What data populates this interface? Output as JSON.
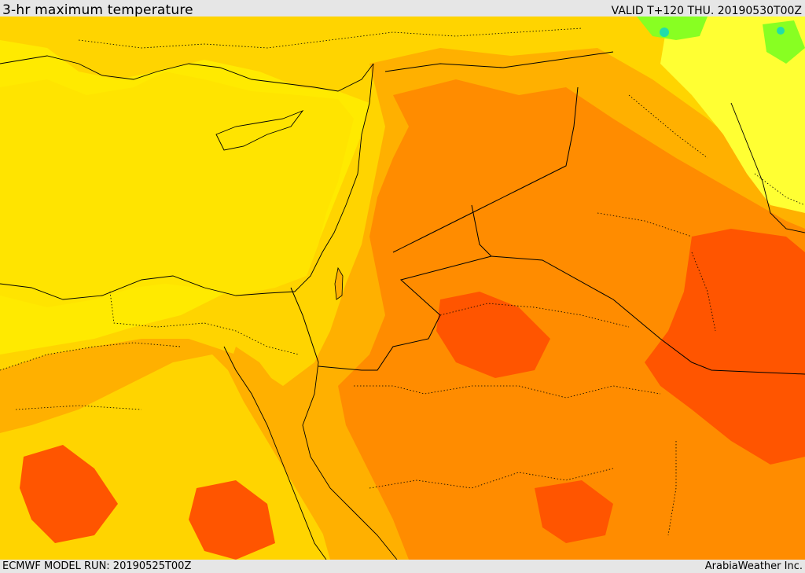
{
  "header": {
    "title": "3-hr maximum temperature",
    "valid": "VALID T+120 THU. 20190530T00Z"
  },
  "footer": {
    "model_run": "ECMWF MODEL RUN: 20190525T00Z",
    "credit": "ArabiaWeather Inc."
  },
  "map": {
    "field": "3-hr maximum temperature",
    "palette": {
      "yellow": "#ffea00",
      "yellow_light": "#ffff33",
      "gold": "#ffd400",
      "amber": "#ffb000",
      "orange": "#ff8c00",
      "dark_orange": "#ff5500",
      "green": "#88ff22",
      "cyan": "#22ddaa",
      "border": "#000000"
    }
  }
}
